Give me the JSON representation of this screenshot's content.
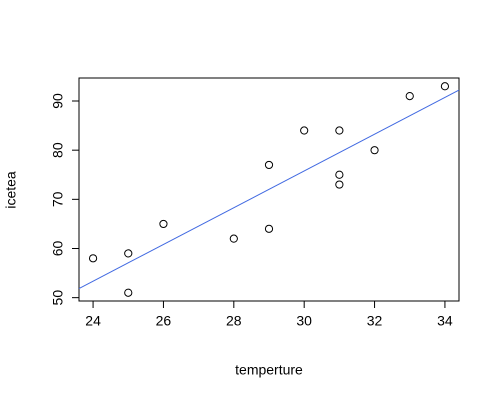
{
  "chart_data": {
    "type": "scatter",
    "xlabel": "temperture",
    "ylabel": "icetea",
    "x": [
      24,
      25,
      25,
      26,
      28,
      29,
      29,
      30,
      31,
      31,
      31,
      32,
      33,
      34
    ],
    "y": [
      58,
      59,
      51,
      65,
      62,
      77,
      64,
      84,
      84,
      75,
      73,
      80,
      91,
      93
    ],
    "xlim": [
      23.6,
      34.4
    ],
    "ylim": [
      49.32,
      94.68
    ],
    "xticks": [
      24,
      26,
      28,
      30,
      32,
      34
    ],
    "yticks": [
      50,
      60,
      70,
      80,
      90
    ],
    "marker_color": "#000000",
    "fit_line": {
      "x": [
        23.6,
        34.4
      ],
      "y": [
        51.85,
        92.22
      ],
      "color": "#4169e1"
    }
  }
}
